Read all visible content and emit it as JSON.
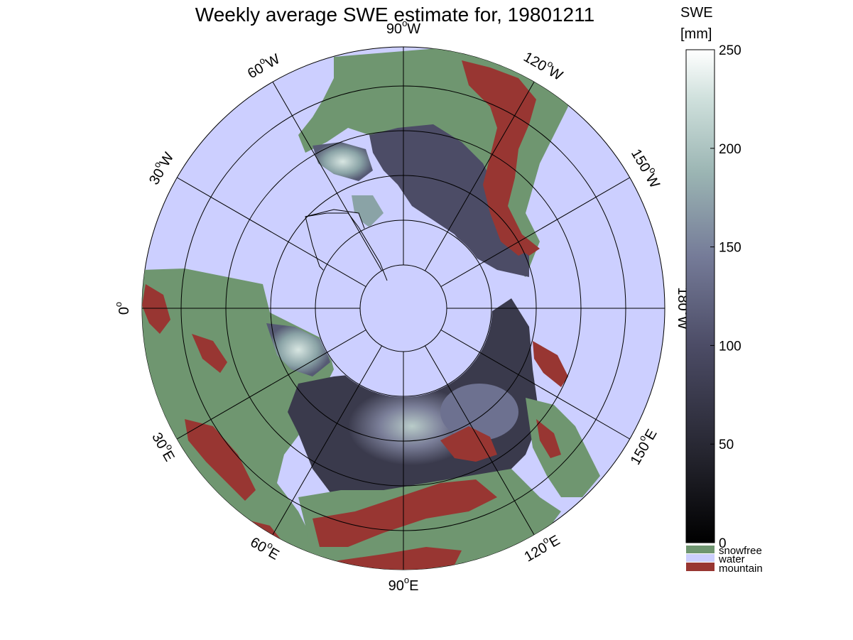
{
  "title": "Weekly average SWE estimate for, 19801211",
  "colorbar": {
    "title_line1": "SWE",
    "title_line2": "[mm]",
    "ticks": [
      "250",
      "200",
      "150",
      "100",
      "50",
      "0"
    ],
    "tick_values": [
      250,
      200,
      150,
      100,
      50,
      0
    ],
    "range": [
      0,
      250
    ],
    "category_labels": [
      "snowfree",
      "water",
      "mountain"
    ],
    "category_colors": [
      "#6f9670",
      "#cccfff",
      "#983632"
    ]
  },
  "meridian_labels": [
    {
      "deg": "90",
      "sup": "o",
      "hem": "W",
      "name": "label-90w"
    },
    {
      "deg": "120",
      "sup": "o",
      "hem": "W",
      "name": "label-120w"
    },
    {
      "deg": "150",
      "sup": "o",
      "hem": "W",
      "name": "label-150w"
    },
    {
      "deg": "180",
      "sup": "o",
      "hem": "W",
      "name": "label-180w"
    },
    {
      "deg": "150",
      "sup": "o",
      "hem": "E",
      "name": "label-150e"
    },
    {
      "deg": "120",
      "sup": "o",
      "hem": "E",
      "name": "label-120e"
    },
    {
      "deg": "90",
      "sup": "o",
      "hem": "E",
      "name": "label-90e"
    },
    {
      "deg": "60",
      "sup": "o",
      "hem": "E",
      "name": "label-60e"
    },
    {
      "deg": "30",
      "sup": "o",
      "hem": "E",
      "name": "label-30e"
    },
    {
      "deg": "0",
      "sup": "o",
      "hem": "",
      "name": "label-0"
    },
    {
      "deg": "30",
      "sup": "o",
      "hem": "W",
      "name": "label-30w"
    },
    {
      "deg": "60",
      "sup": "o",
      "hem": "W",
      "name": "label-60w"
    }
  ],
  "colors": {
    "ocean": "#cccfff",
    "snowfree": "#6f9670",
    "mountain": "#983632",
    "snow_low": "#1a1a24",
    "snow_mid": "#5b5b78",
    "snow_high": "#c8dcd6"
  }
}
